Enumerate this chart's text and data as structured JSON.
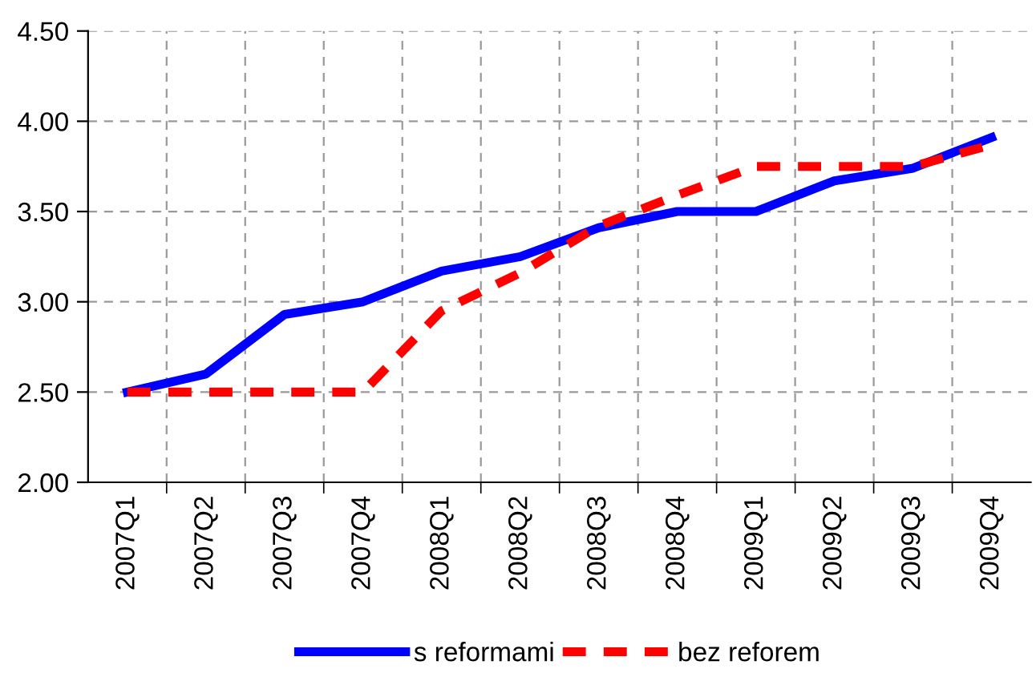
{
  "chart_data": {
    "type": "line",
    "categories": [
      "2007Q1",
      "2007Q2",
      "2007Q3",
      "2007Q4",
      "2008Q1",
      "2008Q2",
      "2008Q3",
      "2008Q4",
      "2009Q1",
      "2009Q2",
      "2009Q3",
      "2009Q4"
    ],
    "series": [
      {
        "name": "s reformami",
        "color": "#0000ff",
        "line_style": "solid",
        "values": [
          2.5,
          2.6,
          2.93,
          3.0,
          3.17,
          3.25,
          3.41,
          3.5,
          3.5,
          3.67,
          3.74,
          3.91
        ]
      },
      {
        "name": "bez reforem",
        "color": "#ff0000",
        "line_style": "dashed",
        "values": [
          2.5,
          2.5,
          2.5,
          2.5,
          2.95,
          3.16,
          3.42,
          3.59,
          3.75,
          3.75,
          3.75,
          3.87
        ]
      }
    ],
    "ylim": [
      2.0,
      4.5
    ],
    "yticks": [
      {
        "value": 2.0,
        "label": "2.00"
      },
      {
        "value": 2.5,
        "label": "2.50"
      },
      {
        "value": 3.0,
        "label": "3.00"
      },
      {
        "value": 3.5,
        "label": "3.50"
      },
      {
        "value": 4.0,
        "label": "4.00"
      },
      {
        "value": 4.5,
        "label": "4.50"
      }
    ],
    "grid": true,
    "legend": "bottom",
    "marker": "none"
  }
}
